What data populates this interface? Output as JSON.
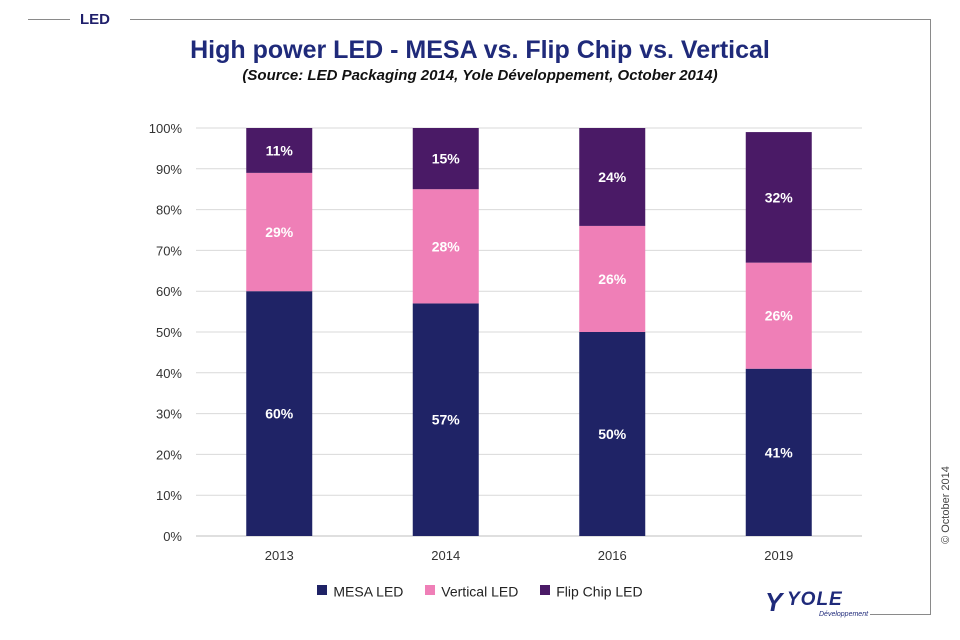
{
  "header": {
    "section_tag": "LED",
    "copyright": "© October 2014"
  },
  "logo": {
    "mark": "Y",
    "name": "YOLE",
    "sub": "Développement"
  },
  "colors": {
    "mesa": "#1f2366",
    "vertical": "#ef7fb7",
    "flip_chip": "#4a1a66",
    "title": "#1f2a7a",
    "grid": "#d9d9d9"
  },
  "chart_data": {
    "type": "bar",
    "stacked": true,
    "title": "High power LED - MESA vs. Flip Chip vs. Vertical",
    "subtitle": "(Source:  LED Packaging 2014, Yole Développement, October 2014)",
    "categories": [
      "2013",
      "2014",
      "2016",
      "2019"
    ],
    "series": [
      {
        "name": "MESA LED",
        "values": [
          60,
          57,
          50,
          41
        ],
        "labels": [
          "60%",
          "57%",
          "50%",
          "41%"
        ],
        "color": "#1f2366"
      },
      {
        "name": "Vertical LED",
        "values": [
          29,
          28,
          26,
          26
        ],
        "labels": [
          "29%",
          "28%",
          "26%",
          "26%"
        ],
        "color": "#ef7fb7"
      },
      {
        "name": "Flip Chip LED",
        "values": [
          11,
          15,
          24,
          32
        ],
        "labels": [
          "11%",
          "15%",
          "24%",
          "32%"
        ],
        "color": "#4a1a66"
      }
    ],
    "ylim": [
      0,
      100
    ],
    "yticks": [
      "0%",
      "10%",
      "20%",
      "30%",
      "40%",
      "50%",
      "60%",
      "70%",
      "80%",
      "90%",
      "100%"
    ],
    "xlabel": "",
    "ylabel": "",
    "grid": true,
    "legend_position": "bottom"
  }
}
